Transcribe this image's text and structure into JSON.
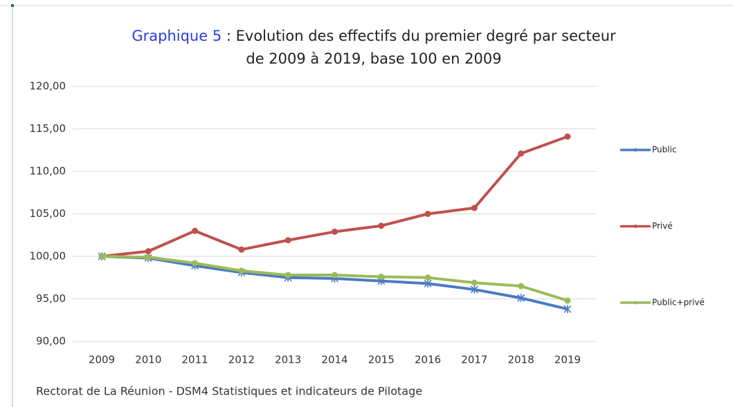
{
  "chart_data": {
    "type": "line",
    "title": {
      "label": "Graphique 5",
      "line1": " : Evolution des effectifs du premier degré par secteur",
      "line2": "de 2009 à 2019, base 100 en 2009"
    },
    "source": "Rectorat de La Réunion - DSM4 Statistiques et indicateurs de Pilotage",
    "categories": [
      "2009",
      "2010",
      "2011",
      "2012",
      "2013",
      "2014",
      "2015",
      "2016",
      "2017",
      "2018",
      "2019"
    ],
    "series": [
      {
        "name": "Public",
        "color": "#4a7bc4",
        "marker": "star",
        "values": [
          100,
          99.8,
          98.9,
          98.1,
          97.5,
          97.4,
          97.1,
          96.8,
          96.1,
          95.1,
          93.8
        ]
      },
      {
        "name": "Privé",
        "color": "#c0504d",
        "marker": "circle",
        "values": [
          100,
          100.6,
          103.0,
          100.8,
          101.9,
          102.9,
          103.6,
          105.0,
          105.7,
          112.1,
          114.1
        ]
      },
      {
        "name": "Public+privé",
        "color": "#9bbb59",
        "marker": "circle",
        "values": [
          100,
          99.9,
          99.2,
          98.3,
          97.8,
          97.8,
          97.6,
          97.5,
          96.9,
          96.5,
          94.8
        ]
      }
    ],
    "ylim": [
      90,
      120
    ],
    "yticks": [
      {
        "value": 90,
        "label": "90,00"
      },
      {
        "value": 95,
        "label": "95,00"
      },
      {
        "value": 100,
        "label": "100,00"
      },
      {
        "value": 105,
        "label": "105,00"
      },
      {
        "value": 110,
        "label": "110,00"
      },
      {
        "value": 115,
        "label": "115,00"
      },
      {
        "value": 120,
        "label": "120,00"
      }
    ],
    "grid": true,
    "legend": "right"
  }
}
